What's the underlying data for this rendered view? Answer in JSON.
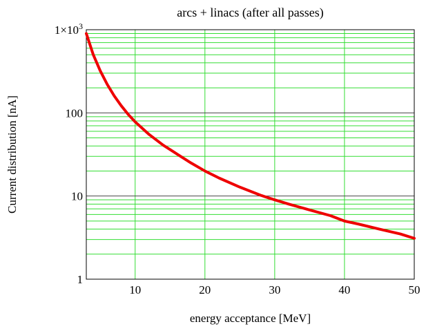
{
  "chart_data": {
    "type": "line",
    "title": "arcs + linacs (after all passes)",
    "xlabel": "energy acceptance [MeV]",
    "ylabel": "Current distribution [nA]",
    "xlim": [
      3,
      50
    ],
    "ylim": [
      1,
      1000
    ],
    "yscale": "log",
    "grid": true,
    "grid_color": "#33dd33",
    "line_color": "#ee0000",
    "x_ticks": [
      10,
      20,
      30,
      40,
      50
    ],
    "x_tick_labels": [
      "10",
      "20",
      "30",
      "40",
      "50"
    ],
    "y_ticks": [
      1,
      10,
      100,
      1000
    ],
    "y_tick_labels": [
      "1",
      "10",
      "100",
      "1×10"
    ],
    "y_top_tick_exponent": "3",
    "series": [
      {
        "x": [
          3,
          4,
          5,
          6,
          7,
          8,
          9,
          10,
          12,
          14,
          16,
          18,
          20,
          22,
          25,
          28,
          30,
          32,
          35,
          38,
          40,
          42,
          45,
          48,
          50
        ],
        "y": [
          900,
          500,
          320,
          220,
          160,
          122,
          96,
          78,
          55,
          41,
          32,
          25,
          20,
          16.5,
          12.8,
          10.2,
          9.0,
          8.0,
          6.8,
          5.8,
          5.0,
          4.6,
          4.0,
          3.5,
          3.1
        ]
      }
    ]
  }
}
